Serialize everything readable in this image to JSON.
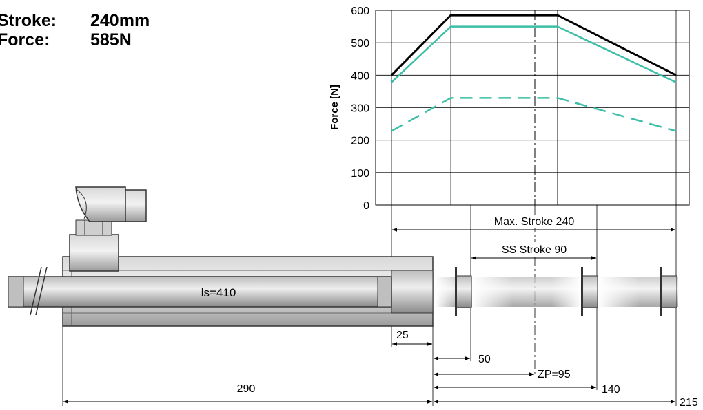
{
  "specs": {
    "stroke_label": "Stroke:",
    "stroke_value": "240mm",
    "force_label": "Force:",
    "force_value": "585N"
  },
  "chart_data": {
    "type": "line",
    "ylabel": "Force [N]",
    "ylim": [
      0,
      600
    ],
    "yticks": [
      "600",
      "500",
      "400",
      "300",
      "200",
      "100",
      "0"
    ],
    "x": [
      0,
      50,
      140,
      240
    ],
    "series": [
      {
        "values": [
          400,
          585,
          585,
          400
        ],
        "color": "#000000",
        "dash": false
      },
      {
        "values": [
          378,
          550,
          550,
          378
        ],
        "color": "#3cbfa7",
        "dash": false
      },
      {
        "values": [
          228,
          330,
          330,
          228
        ],
        "color": "#3cbfa7",
        "dash": true
      }
    ],
    "grid": true
  },
  "dimensions": {
    "max_stroke": "Max. Stroke 240",
    "ss_stroke": "SS Stroke 90",
    "ls": "ls=410",
    "d25": "25",
    "d50": "50",
    "zp": "ZP=95",
    "d290": "290",
    "d140": "140",
    "d215": "215"
  },
  "colors": {
    "accent": "#3cbfa7",
    "body_gray": "#c8c8c8"
  }
}
